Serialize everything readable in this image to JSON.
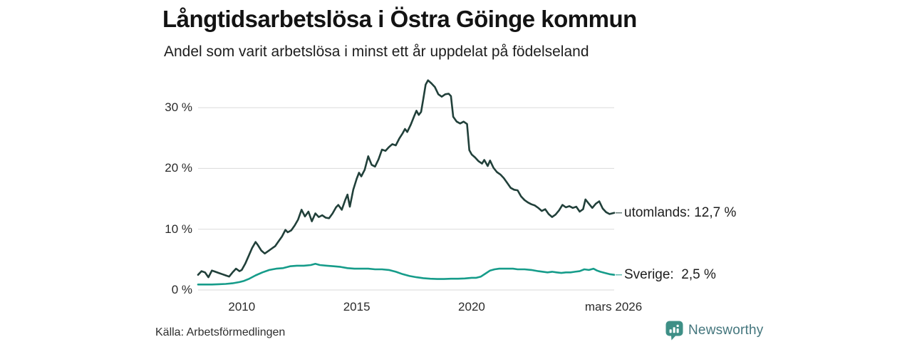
{
  "header": {
    "title": "Långtidsarbetslösa i Östra Göinge kommun",
    "subtitle": "Andel som varit arbetslösa i minst ett år uppdelat på födelseland"
  },
  "footer": {
    "source": "Källa: Arbetsförmedlingen",
    "brand": "Newsworthy"
  },
  "colors": {
    "utomlands_line": "#21403a",
    "sverige_line": "#169c8a",
    "gridline": "#dadada",
    "brand_icon": "#3e8f86",
    "brand_text": "#44767d"
  },
  "chart_data": {
    "type": "line",
    "title": "Långtidsarbetslösa i Östra Göinge kommun",
    "subtitle": "Andel som varit arbetslösa i minst ett år uppdelat på födelseland",
    "grid": true,
    "legend_position": "right-end-labels",
    "x_axis": {
      "range": [
        2008.1,
        2026.2
      ],
      "ticks": [
        {
          "label": "2010",
          "year": 2010
        },
        {
          "label": "2015",
          "year": 2015
        },
        {
          "label": "2020",
          "year": 2020
        },
        {
          "label": "mars 2026",
          "year": 2026.17
        }
      ]
    },
    "y_axis": {
      "range": [
        0,
        35
      ],
      "unit": "%",
      "ticks": [
        {
          "label": "0 %",
          "value": 0
        },
        {
          "label": "10 %",
          "value": 10
        },
        {
          "label": "20 %",
          "value": 20
        },
        {
          "label": "30 %",
          "value": 30
        }
      ]
    },
    "series": [
      {
        "name": "utomlands",
        "label": "utomlands: 12,7 %",
        "end_value": "12,7 %",
        "color": "#21403a",
        "points": [
          [
            2008.1,
            2.5
          ],
          [
            2008.25,
            3.1
          ],
          [
            2008.4,
            2.9
          ],
          [
            2008.55,
            2.1
          ],
          [
            2008.7,
            3.2
          ],
          [
            2008.85,
            3.0
          ],
          [
            2009.0,
            2.8
          ],
          [
            2009.15,
            2.6
          ],
          [
            2009.3,
            2.4
          ],
          [
            2009.45,
            2.2
          ],
          [
            2009.6,
            2.9
          ],
          [
            2009.75,
            3.5
          ],
          [
            2009.9,
            3.1
          ],
          [
            2010.0,
            3.3
          ],
          [
            2010.15,
            4.3
          ],
          [
            2010.3,
            5.6
          ],
          [
            2010.45,
            6.9
          ],
          [
            2010.6,
            7.9
          ],
          [
            2010.7,
            7.4
          ],
          [
            2010.85,
            6.5
          ],
          [
            2011.0,
            6.0
          ],
          [
            2011.15,
            6.4
          ],
          [
            2011.3,
            6.8
          ],
          [
            2011.45,
            7.2
          ],
          [
            2011.6,
            8.0
          ],
          [
            2011.75,
            8.8
          ],
          [
            2011.9,
            9.9
          ],
          [
            2012.0,
            9.5
          ],
          [
            2012.15,
            9.8
          ],
          [
            2012.3,
            10.6
          ],
          [
            2012.45,
            11.6
          ],
          [
            2012.6,
            13.2
          ],
          [
            2012.75,
            12.1
          ],
          [
            2012.9,
            12.9
          ],
          [
            2013.05,
            11.3
          ],
          [
            2013.2,
            12.6
          ],
          [
            2013.35,
            12.0
          ],
          [
            2013.5,
            12.3
          ],
          [
            2013.65,
            11.9
          ],
          [
            2013.8,
            11.8
          ],
          [
            2013.95,
            12.6
          ],
          [
            2014.1,
            13.6
          ],
          [
            2014.2,
            14.0
          ],
          [
            2014.35,
            13.2
          ],
          [
            2014.5,
            14.8
          ],
          [
            2014.6,
            15.7
          ],
          [
            2014.7,
            13.7
          ],
          [
            2014.85,
            16.5
          ],
          [
            2015.0,
            18.3
          ],
          [
            2015.1,
            19.3
          ],
          [
            2015.2,
            18.7
          ],
          [
            2015.35,
            19.8
          ],
          [
            2015.5,
            22.0
          ],
          [
            2015.65,
            20.6
          ],
          [
            2015.8,
            20.3
          ],
          [
            2015.95,
            21.5
          ],
          [
            2016.1,
            23.1
          ],
          [
            2016.25,
            22.9
          ],
          [
            2016.4,
            23.5
          ],
          [
            2016.55,
            24.0
          ],
          [
            2016.7,
            23.8
          ],
          [
            2016.85,
            24.9
          ],
          [
            2017.0,
            25.8
          ],
          [
            2017.1,
            26.5
          ],
          [
            2017.2,
            26.0
          ],
          [
            2017.35,
            27.2
          ],
          [
            2017.5,
            28.6
          ],
          [
            2017.6,
            29.5
          ],
          [
            2017.7,
            28.8
          ],
          [
            2017.8,
            29.3
          ],
          [
            2017.9,
            31.5
          ],
          [
            2018.0,
            33.8
          ],
          [
            2018.1,
            34.5
          ],
          [
            2018.25,
            34.0
          ],
          [
            2018.4,
            33.4
          ],
          [
            2018.55,
            32.2
          ],
          [
            2018.7,
            31.8
          ],
          [
            2018.85,
            32.2
          ],
          [
            2019.0,
            32.3
          ],
          [
            2019.1,
            31.9
          ],
          [
            2019.2,
            28.5
          ],
          [
            2019.35,
            27.7
          ],
          [
            2019.5,
            27.4
          ],
          [
            2019.65,
            27.7
          ],
          [
            2019.8,
            27.3
          ],
          [
            2019.9,
            23.0
          ],
          [
            2020.0,
            22.3
          ],
          [
            2020.15,
            21.8
          ],
          [
            2020.3,
            21.2
          ],
          [
            2020.45,
            20.8
          ],
          [
            2020.55,
            21.4
          ],
          [
            2020.7,
            20.4
          ],
          [
            2020.8,
            21.3
          ],
          [
            2020.95,
            20.1
          ],
          [
            2021.1,
            19.4
          ],
          [
            2021.25,
            19.0
          ],
          [
            2021.4,
            18.4
          ],
          [
            2021.55,
            17.6
          ],
          [
            2021.7,
            16.8
          ],
          [
            2021.85,
            16.5
          ],
          [
            2022.0,
            16.4
          ],
          [
            2022.15,
            15.4
          ],
          [
            2022.3,
            14.8
          ],
          [
            2022.45,
            14.4
          ],
          [
            2022.6,
            14.1
          ],
          [
            2022.75,
            13.9
          ],
          [
            2022.9,
            13.5
          ],
          [
            2023.05,
            13.0
          ],
          [
            2023.2,
            13.3
          ],
          [
            2023.35,
            12.5
          ],
          [
            2023.5,
            12.0
          ],
          [
            2023.65,
            12.4
          ],
          [
            2023.8,
            13.1
          ],
          [
            2023.95,
            14.0
          ],
          [
            2024.1,
            13.6
          ],
          [
            2024.25,
            13.8
          ],
          [
            2024.4,
            13.5
          ],
          [
            2024.55,
            13.7
          ],
          [
            2024.7,
            12.9
          ],
          [
            2024.85,
            13.3
          ],
          [
            2024.95,
            14.9
          ],
          [
            2025.1,
            14.2
          ],
          [
            2025.25,
            13.5
          ],
          [
            2025.4,
            14.2
          ],
          [
            2025.55,
            14.6
          ],
          [
            2025.7,
            13.4
          ],
          [
            2025.85,
            12.8
          ],
          [
            2026.0,
            12.5
          ],
          [
            2026.2,
            12.7
          ]
        ]
      },
      {
        "name": "Sverige",
        "label": "Sverige:  2,5 %",
        "end_value": "2,5 %",
        "color": "#169c8a",
        "points": [
          [
            2008.1,
            0.9
          ],
          [
            2008.4,
            0.9
          ],
          [
            2008.7,
            0.9
          ],
          [
            2009.0,
            0.95
          ],
          [
            2009.3,
            1.0
          ],
          [
            2009.6,
            1.1
          ],
          [
            2009.9,
            1.3
          ],
          [
            2010.1,
            1.5
          ],
          [
            2010.3,
            1.8
          ],
          [
            2010.6,
            2.4
          ],
          [
            2010.9,
            2.9
          ],
          [
            2011.2,
            3.3
          ],
          [
            2011.5,
            3.5
          ],
          [
            2011.8,
            3.6
          ],
          [
            2012.1,
            3.9
          ],
          [
            2012.4,
            4.0
          ],
          [
            2012.7,
            4.0
          ],
          [
            2013.0,
            4.1
          ],
          [
            2013.2,
            4.3
          ],
          [
            2013.4,
            4.1
          ],
          [
            2013.7,
            4.0
          ],
          [
            2014.0,
            3.9
          ],
          [
            2014.3,
            3.8
          ],
          [
            2014.6,
            3.6
          ],
          [
            2014.9,
            3.5
          ],
          [
            2015.2,
            3.5
          ],
          [
            2015.5,
            3.5
          ],
          [
            2015.8,
            3.4
          ],
          [
            2016.1,
            3.4
          ],
          [
            2016.4,
            3.3
          ],
          [
            2016.7,
            3.0
          ],
          [
            2017.0,
            2.6
          ],
          [
            2017.3,
            2.3
          ],
          [
            2017.6,
            2.1
          ],
          [
            2017.9,
            1.95
          ],
          [
            2018.2,
            1.85
          ],
          [
            2018.5,
            1.8
          ],
          [
            2018.8,
            1.8
          ],
          [
            2019.1,
            1.85
          ],
          [
            2019.4,
            1.85
          ],
          [
            2019.7,
            1.9
          ],
          [
            2020.0,
            2.0
          ],
          [
            2020.2,
            2.0
          ],
          [
            2020.4,
            2.2
          ],
          [
            2020.6,
            2.7
          ],
          [
            2020.8,
            3.2
          ],
          [
            2021.0,
            3.4
          ],
          [
            2021.2,
            3.5
          ],
          [
            2021.5,
            3.5
          ],
          [
            2021.8,
            3.5
          ],
          [
            2022.0,
            3.4
          ],
          [
            2022.3,
            3.4
          ],
          [
            2022.6,
            3.3
          ],
          [
            2022.9,
            3.1
          ],
          [
            2023.1,
            3.0
          ],
          [
            2023.3,
            2.9
          ],
          [
            2023.5,
            3.0
          ],
          [
            2023.7,
            2.9
          ],
          [
            2023.9,
            2.8
          ],
          [
            2024.1,
            2.9
          ],
          [
            2024.3,
            2.9
          ],
          [
            2024.5,
            3.0
          ],
          [
            2024.7,
            3.1
          ],
          [
            2024.9,
            3.4
          ],
          [
            2025.1,
            3.3
          ],
          [
            2025.3,
            3.5
          ],
          [
            2025.45,
            3.2
          ],
          [
            2025.6,
            3.0
          ],
          [
            2025.8,
            2.8
          ],
          [
            2026.0,
            2.6
          ],
          [
            2026.2,
            2.5
          ]
        ]
      }
    ]
  }
}
